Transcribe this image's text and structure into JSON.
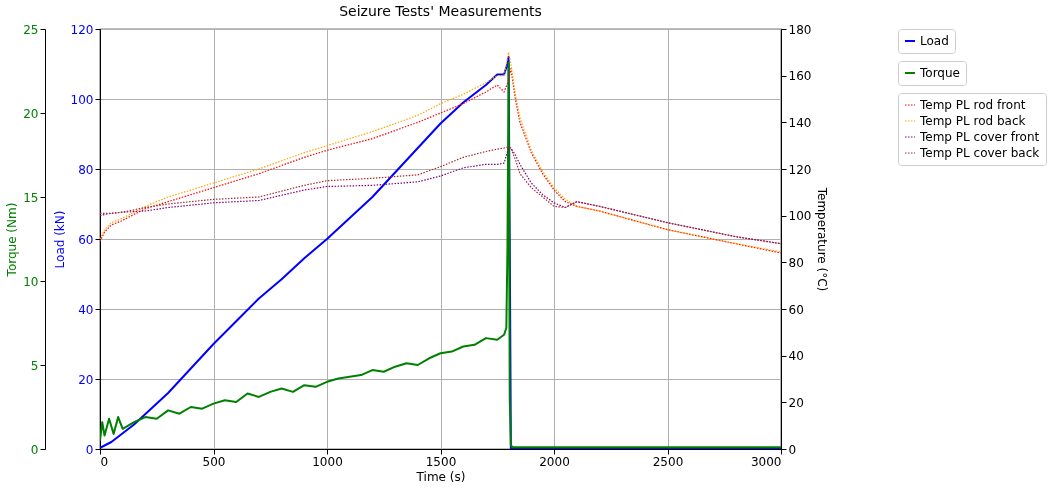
{
  "chart_data": {
    "type": "line",
    "title": "Seizure Tests' Measurements",
    "xlabel": "Time (s)",
    "ylabel": "Load (kN)",
    "y2label": "Temperature (°C)",
    "y3label": "Torque (Nm)",
    "xlim": [
      0,
      3000
    ],
    "xticks": [
      0,
      500,
      1000,
      1500,
      2000,
      2500,
      3000
    ],
    "ylim": [
      0,
      120
    ],
    "yticks": [
      0,
      20,
      40,
      60,
      80,
      100,
      120
    ],
    "y2lim": [
      0,
      180
    ],
    "y2ticks": [
      0,
      20,
      40,
      60,
      80,
      100,
      120,
      140,
      160,
      180
    ],
    "y3lim": [
      0,
      25
    ],
    "y3ticks": [
      0,
      5,
      10,
      15,
      20,
      25
    ],
    "grid": true,
    "legend": "top right",
    "series": [
      {
        "name": "Load",
        "color": "#0000ff",
        "axis": "y",
        "line_style": "solid",
        "x": [
          0,
          20,
          50,
          100,
          150,
          200,
          300,
          400,
          500,
          600,
          700,
          800,
          900,
          1000,
          1100,
          1200,
          1300,
          1400,
          1500,
          1600,
          1700,
          1750,
          1780,
          1795,
          1800,
          1805,
          1810,
          2000,
          3000
        ],
        "values": [
          0.3,
          1,
          2,
          4.5,
          7,
          10,
          16,
          23,
          30,
          36.5,
          43,
          48.5,
          54.5,
          60,
          66,
          72,
          79,
          86,
          93,
          99,
          104,
          107,
          107,
          110,
          112,
          60,
          0,
          0,
          0
        ]
      },
      {
        "name": "Torque",
        "color": "#008000",
        "axis": "y3",
        "line_style": "solid",
        "x": [
          0,
          10,
          20,
          40,
          60,
          80,
          100,
          150,
          200,
          250,
          300,
          350,
          400,
          450,
          500,
          550,
          600,
          650,
          700,
          750,
          800,
          850,
          900,
          950,
          1000,
          1050,
          1100,
          1150,
          1200,
          1250,
          1300,
          1350,
          1400,
          1450,
          1500,
          1550,
          1600,
          1650,
          1700,
          1750,
          1780,
          1790,
          1795,
          1800,
          1805,
          1810,
          1820,
          2000,
          2500,
          3000
        ],
        "values": [
          0.5,
          1.6,
          0.8,
          1.8,
          0.9,
          1.9,
          1.2,
          1.6,
          1.9,
          1.8,
          2.3,
          2.1,
          2.5,
          2.4,
          2.7,
          2.9,
          2.8,
          3.3,
          3.1,
          3.4,
          3.6,
          3.4,
          3.8,
          3.7,
          4.0,
          4.2,
          4.3,
          4.4,
          4.7,
          4.6,
          4.9,
          5.1,
          5.0,
          5.4,
          5.7,
          5.8,
          6.1,
          6.2,
          6.6,
          6.5,
          6.8,
          7.2,
          12,
          23.0,
          3,
          0.2,
          0.1,
          0.1,
          0.1,
          0.1
        ]
      },
      {
        "name": "Temp PL rod front",
        "color": "#ff0000",
        "axis": "y2",
        "line_style": "dotted",
        "x": [
          0,
          20,
          50,
          100,
          200,
          300,
          500,
          700,
          900,
          1000,
          1200,
          1400,
          1500,
          1600,
          1700,
          1750,
          1780,
          1800,
          1810,
          1830,
          1850,
          1900,
          1950,
          2000,
          2050,
          2100,
          2200,
          2500,
          2800,
          3000
        ],
        "values": [
          89,
          93,
          96,
          98,
          103,
          106,
          112,
          118,
          125,
          128,
          133,
          140,
          144,
          148,
          153,
          156,
          153,
          158,
          163,
          150,
          140,
          127,
          118,
          111,
          106,
          104,
          102,
          94,
          88,
          84
        ]
      },
      {
        "name": "Temp PL rod back",
        "color": "#ffa500",
        "axis": "y2",
        "line_style": "dotted",
        "x": [
          0,
          20,
          50,
          100,
          200,
          300,
          500,
          700,
          900,
          1000,
          1200,
          1400,
          1500,
          1600,
          1700,
          1750,
          1780,
          1800,
          1810,
          1830,
          1850,
          1900,
          1950,
          2000,
          2050,
          2100,
          2200,
          2500,
          2800,
          3000
        ],
        "values": [
          90,
          94,
          97,
          99,
          104,
          108,
          114,
          120,
          127,
          130,
          136,
          143,
          148,
          152,
          157,
          160,
          160,
          170,
          165,
          152,
          142,
          128,
          119,
          112,
          107,
          104,
          102,
          94,
          88,
          84.5
        ]
      },
      {
        "name": "Temp PL cover front",
        "color": "#800080",
        "axis": "y2",
        "line_style": "dotted",
        "x": [
          0,
          20,
          50,
          100,
          200,
          300,
          500,
          700,
          900,
          1000,
          1200,
          1400,
          1500,
          1600,
          1700,
          1750,
          1780,
          1800,
          1810,
          1830,
          1850,
          1900,
          1950,
          2000,
          2050,
          2100,
          2200,
          2500,
          2800,
          3000
        ],
        "values": [
          100,
          100.5,
          101,
          101.5,
          102,
          103.5,
          105.5,
          106.5,
          111,
          112.5,
          113,
          114.5,
          117,
          120.5,
          122,
          122,
          122.5,
          129,
          129,
          126,
          122,
          114,
          109,
          105.5,
          103.5,
          106,
          104,
          97,
          91,
          88
        ]
      },
      {
        "name": "Temp PL cover back",
        "color": "#a52a2a",
        "axis": "y2",
        "line_style": "dotted",
        "x": [
          0,
          20,
          50,
          100,
          200,
          300,
          500,
          700,
          900,
          1000,
          1200,
          1400,
          1500,
          1600,
          1700,
          1750,
          1780,
          1800,
          1810,
          1830,
          1850,
          1900,
          1950,
          2000,
          2050,
          2100,
          2200,
          2500,
          2800,
          3000
        ],
        "values": [
          101,
          101,
          101,
          101.5,
          103.5,
          105,
          107,
          108,
          113,
          115,
          116,
          117.5,
          121,
          125,
          127.5,
          128.5,
          129,
          129.5,
          129,
          124,
          118,
          112,
          108,
          104,
          103.5,
          106,
          104,
          97,
          91,
          88
        ]
      }
    ]
  }
}
